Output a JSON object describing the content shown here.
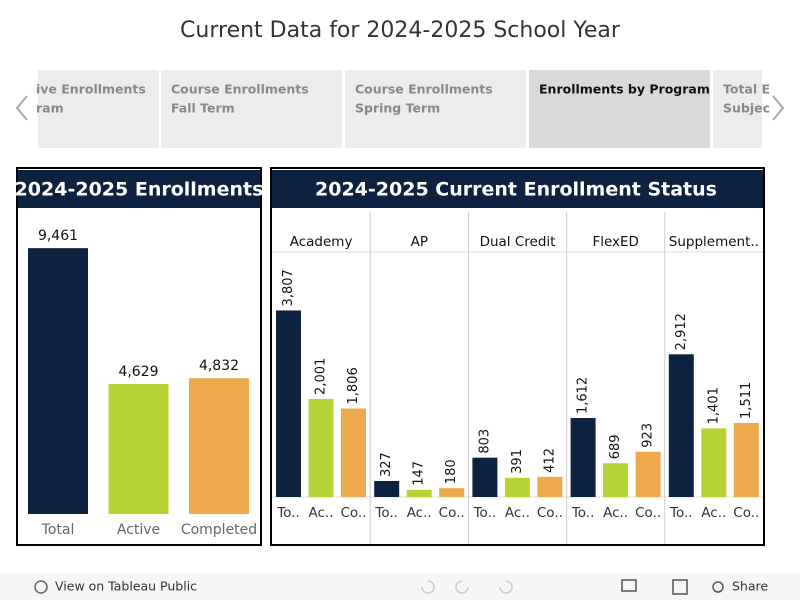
{
  "header": {
    "title": "Current Data for 2024-2025 School Year"
  },
  "tabs": [
    {
      "lines": [
        "ive Enrollments",
        "ram"
      ]
    },
    {
      "lines": [
        "Course Enrollments",
        "Fall Term"
      ]
    },
    {
      "lines": [
        "Course Enrollments",
        "Spring Term"
      ]
    },
    {
      "lines": [
        "Enrollments by Program"
      ],
      "selected": true
    },
    {
      "lines": [
        "Total E",
        "Subjec"
      ]
    }
  ],
  "toolbar": {
    "view_link": "View on Tableau Public",
    "share": "Share"
  },
  "chart_data": [
    {
      "type": "bar",
      "title": "2024-2025  Enrollments",
      "categories": [
        "Total",
        "Active",
        "Completed"
      ],
      "values": [
        9461,
        4629,
        4832
      ],
      "value_labels": [
        "9,461",
        "4,629",
        "4,832"
      ],
      "colors": [
        "#0d2240",
        "#b5d334",
        "#ecaa4c"
      ],
      "ylim": [
        0,
        10000
      ]
    },
    {
      "type": "bar",
      "title": "2024-2025 Current Enrollment Status",
      "categories": [
        "Academy",
        "AP",
        "Dual Credit",
        "FlexED",
        "Supplement.."
      ],
      "series": [
        {
          "name": "To..",
          "color": "#0d2240",
          "values": [
            3807,
            327,
            803,
            1612,
            2912
          ],
          "value_labels": [
            "3,807",
            "327",
            "803",
            "1,612",
            "2,912"
          ]
        },
        {
          "name": "Ac..",
          "color": "#b5d334",
          "values": [
            2001,
            147,
            391,
            689,
            1401
          ],
          "value_labels": [
            "2,001",
            "147",
            "391",
            "689",
            "1,401"
          ]
        },
        {
          "name": "Co..",
          "color": "#ecaa4c",
          "values": [
            1806,
            180,
            412,
            923,
            1511
          ],
          "value_labels": [
            "1,806",
            "180",
            "412",
            "923",
            "1,511"
          ]
        }
      ],
      "ylim": [
        0,
        5000
      ]
    }
  ]
}
